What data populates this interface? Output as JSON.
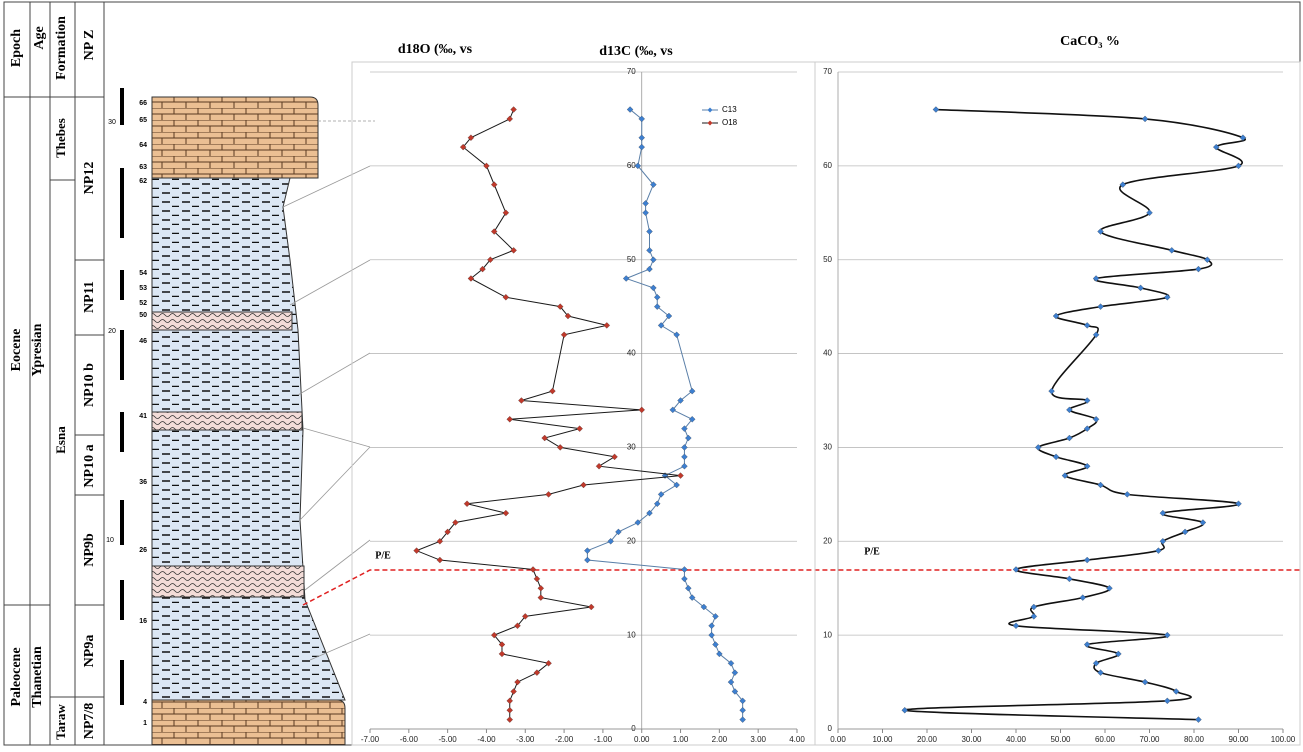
{
  "strat": {
    "headers": [
      "Epoch",
      "Age",
      "Formation",
      "NP Z"
    ],
    "epochs": [
      "Eocene",
      "Paleocene"
    ],
    "ages": [
      "Ypresian",
      "Thanetian"
    ],
    "formations": [
      "Thebes",
      "Esna",
      "Taraw"
    ],
    "zones": [
      "NP12",
      "NP11",
      "NP10 b",
      "NP10 a",
      "NP9b",
      "NP9a",
      "NP7/8"
    ],
    "samples": [
      "66",
      "65",
      "64",
      "63",
      "62",
      "54",
      "53",
      "52",
      "50",
      "46",
      "41",
      "36",
      "26",
      "16",
      "4",
      "1"
    ],
    "meters": [
      "30",
      "20",
      "10"
    ]
  },
  "chart_data": [
    {
      "type": "line",
      "titles": [
        "d18O (‰, vs",
        "d13C (‰, vs"
      ],
      "annotation": "P/E",
      "xlim": [
        -7,
        4
      ],
      "xticks": [
        {
          "value": -7,
          "label": "-7.00"
        },
        {
          "value": -6,
          "label": "-6.00"
        },
        {
          "value": -5,
          "label": "-5.00"
        },
        {
          "value": -4,
          "label": "-4.00"
        },
        {
          "value": -3,
          "label": "-3.00"
        },
        {
          "value": -2,
          "label": "-2.00"
        },
        {
          "value": -1,
          "label": "-1.00"
        },
        {
          "value": 0,
          "label": "0.00"
        },
        {
          "value": 1,
          "label": "1.00"
        },
        {
          "value": 2,
          "label": "2.00"
        },
        {
          "value": 3,
          "label": "3.00"
        },
        {
          "value": 4,
          "label": "4.00"
        }
      ],
      "ylim": [
        0,
        70
      ],
      "yticks": [
        0,
        10,
        20,
        30,
        40,
        50,
        60,
        70
      ],
      "grid": true,
      "legend": "upper right",
      "series": [
        {
          "name": "C13",
          "color": "#3d7fd0",
          "line_color": "#5a7fa8",
          "x": [
            -0.3,
            0.0,
            0.0,
            0.0,
            -0.1,
            0.3,
            0.1,
            0.1,
            0.2,
            0.2,
            0.3,
            0.2,
            -0.4,
            0.3,
            0.4,
            0.4,
            0.7,
            0.5,
            0.9,
            1.3,
            1.0,
            0.8,
            1.3,
            1.1,
            1.2,
            1.1,
            1.1,
            1.1,
            0.6,
            0.9,
            0.5,
            0.4,
            0.2,
            -0.1,
            -0.6,
            -0.8,
            -1.4,
            -1.4,
            1.1,
            1.1,
            1.2,
            1.3,
            1.6,
            1.9,
            1.8,
            1.8,
            1.9,
            2.0,
            2.3,
            2.4,
            2.3,
            2.4,
            2.6,
            2.6,
            2.6
          ],
          "y": [
            66,
            65,
            63,
            62,
            60,
            58,
            56,
            55,
            53,
            51,
            50,
            49,
            48,
            47,
            46,
            45,
            44,
            43,
            42,
            36,
            35,
            34,
            33,
            32,
            31,
            30,
            29,
            28,
            27,
            26,
            25,
            24,
            23,
            22,
            21,
            20,
            19,
            18,
            17,
            16,
            15,
            14,
            13,
            12,
            11,
            10,
            9,
            8,
            7,
            6,
            5,
            4,
            3,
            2,
            1
          ]
        },
        {
          "name": "O18",
          "color": "#c0392b",
          "line_color": "#1a1a1a",
          "x": [
            -3.3,
            -3.4,
            -4.4,
            -4.6,
            -4.0,
            -3.8,
            -3.5,
            -3.8,
            -3.3,
            -3.9,
            -4.1,
            -4.4,
            -3.5,
            -2.1,
            -1.9,
            -0.9,
            -2.0,
            -2.3,
            -3.1,
            0.0,
            -3.4,
            -1.6,
            -2.5,
            -2.1,
            -0.7,
            -1.1,
            1.0,
            -1.5,
            -2.4,
            -4.5,
            -3.5,
            -4.8,
            -5.0,
            -5.2,
            -5.8,
            -5.2,
            -2.8,
            -2.7,
            -2.6,
            -2.6,
            -1.3,
            -3.0,
            -3.2,
            -3.8,
            -3.6,
            -3.6,
            -2.4,
            -2.7,
            -3.2,
            -3.3,
            -3.4,
            -3.4,
            -3.4
          ],
          "y": [
            66,
            65,
            63,
            62,
            60,
            58,
            55,
            53,
            51,
            50,
            49,
            48,
            46,
            45,
            44,
            43,
            42,
            36,
            35,
            34,
            33,
            32,
            31,
            30,
            29,
            28,
            27,
            26,
            25,
            24,
            23,
            22,
            21,
            20,
            19,
            18,
            17,
            16,
            15,
            14,
            13,
            12,
            11,
            10,
            9,
            8,
            7,
            6,
            5,
            4,
            3,
            2,
            1
          ]
        }
      ]
    },
    {
      "type": "line",
      "title": "CaCO₃ %",
      "annotation": "P/E",
      "smooth": true,
      "xlim": [
        0,
        100
      ],
      "xticks": [
        {
          "value": 0,
          "label": "0.00"
        },
        {
          "value": 10,
          "label": "10.00"
        },
        {
          "value": 20,
          "label": "20.00"
        },
        {
          "value": 30,
          "label": "30.00"
        },
        {
          "value": 40,
          "label": "40.00"
        },
        {
          "value": 50,
          "label": "50.00"
        },
        {
          "value": 60,
          "label": "60.00"
        },
        {
          "value": 70,
          "label": "70.00"
        },
        {
          "value": 80,
          "label": "80.00"
        },
        {
          "value": 90,
          "label": "90.00"
        },
        {
          "value": 100,
          "label": "100.00"
        }
      ],
      "ylim": [
        0,
        70
      ],
      "yticks": [
        0,
        10,
        20,
        30,
        40,
        50,
        60,
        70
      ],
      "grid": true,
      "series": [
        {
          "color": "#3d7fd0",
          "line_color": "#111111",
          "x": [
            22,
            69,
            91,
            85,
            90,
            64,
            70,
            59,
            75,
            83,
            81,
            58,
            68,
            74,
            59,
            49,
            56,
            58,
            48,
            56,
            52,
            58,
            56,
            52,
            45,
            49,
            56,
            51,
            59,
            65,
            90,
            73,
            82,
            78,
            73,
            72,
            56,
            40,
            52,
            61,
            55,
            44,
            44,
            40,
            74,
            56,
            63,
            58,
            59,
            69,
            76,
            74,
            15,
            81
          ],
          "y": [
            66,
            65,
            63,
            62,
            60,
            58,
            55,
            53,
            51,
            50,
            49,
            48,
            47,
            46,
            45,
            44,
            43,
            42,
            36,
            35,
            34,
            33,
            32,
            31,
            30,
            29,
            28,
            27,
            26,
            25,
            24,
            23,
            22,
            21,
            20,
            19,
            18,
            17,
            16,
            15,
            14,
            13,
            12,
            11,
            10,
            9,
            8,
            7,
            6,
            5,
            4,
            3,
            2,
            1
          ]
        }
      ]
    }
  ]
}
